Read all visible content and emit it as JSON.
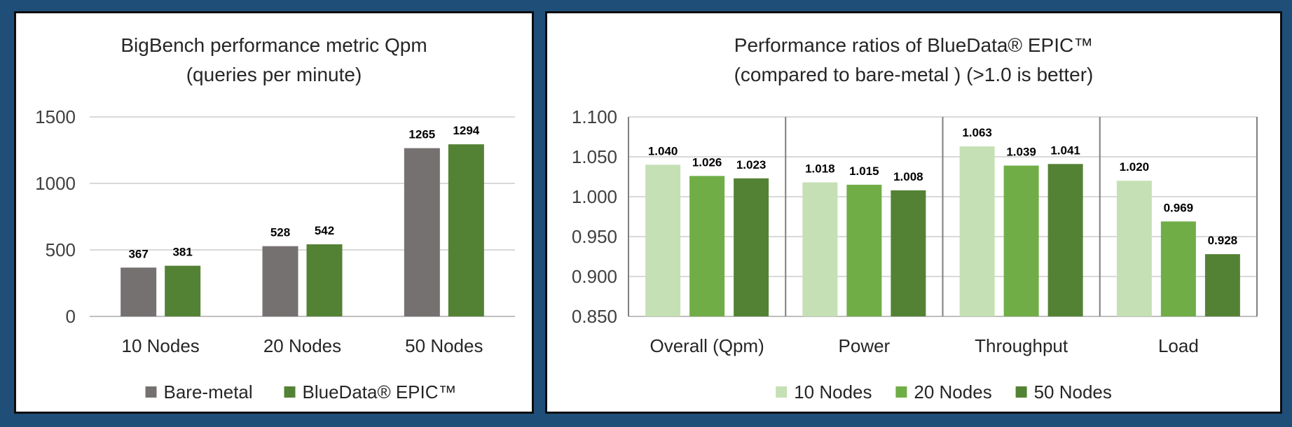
{
  "background": "#1f4e79",
  "chart_data": [
    {
      "type": "bar",
      "title": "BigBench performance metric Qpm",
      "subtitle": "(queries per minute)",
      "categories": [
        "10 Nodes",
        "20 Nodes",
        "50 Nodes"
      ],
      "series": [
        {
          "name": "Bare-metal",
          "color": "#767171",
          "values": [
            367,
            528,
            1265
          ],
          "labels": [
            "367",
            "528",
            "1265"
          ]
        },
        {
          "name": "BlueData® EPIC™",
          "color": "#548235",
          "values": [
            381,
            542,
            1294
          ],
          "labels": [
            "381",
            "542",
            "1294"
          ]
        }
      ],
      "ylim": [
        0,
        1500
      ],
      "yticks": [
        "0",
        "500",
        "1000",
        "1500"
      ],
      "ytick_values": [
        0,
        500,
        1000,
        1500
      ],
      "grid": true,
      "legend": "bottom"
    },
    {
      "type": "bar",
      "title": "Performance ratios of BlueData® EPIC™",
      "subtitle": "(compared to bare-metal ) (>1.0 is better)",
      "categories": [
        "Overall (Qpm)",
        "Power",
        "Throughput",
        "Load"
      ],
      "series": [
        {
          "name": "10 Nodes",
          "color": "#c5e0b4",
          "values": [
            1.04,
            1.018,
            1.063,
            1.02
          ],
          "labels": [
            "1.040",
            "1.018",
            "1.063",
            "1.020"
          ]
        },
        {
          "name": "20 Nodes",
          "color": "#70ad47",
          "values": [
            1.026,
            1.015,
            1.039,
            0.969
          ],
          "labels": [
            "1.026",
            "1.015",
            "1.039",
            "0.969"
          ]
        },
        {
          "name": "50 Nodes",
          "color": "#548235",
          "values": [
            1.023,
            1.008,
            1.041,
            0.928
          ],
          "labels": [
            "1.023",
            "1.008",
            "1.041",
            "0.928"
          ]
        }
      ],
      "ylim": [
        0.85,
        1.1
      ],
      "yticks": [
        "0.850",
        "0.900",
        "0.950",
        "1.000",
        "1.050",
        "1.100"
      ],
      "ytick_values": [
        0.85,
        0.9,
        0.95,
        1.0,
        1.05,
        1.1
      ],
      "grid": true,
      "category_separators": true,
      "legend": "bottom"
    }
  ]
}
